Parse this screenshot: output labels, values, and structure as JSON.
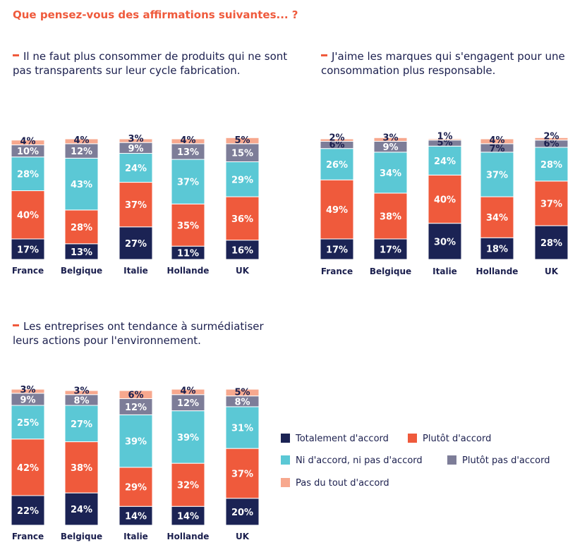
{
  "title": "Que pensez-vous des affirmations suivantes... ?",
  "colors": {
    "totalement": "#1b2354",
    "plutot": "#ef5a3c",
    "ni": "#5bc8d5",
    "plutot_pas": "#7d7d98",
    "pas_du_tout": "#f7a88e"
  },
  "legend": [
    {
      "key": "totalement",
      "label": "Totalement d'accord"
    },
    {
      "key": "plutot",
      "label": "Plutôt d'accord"
    },
    {
      "key": "ni",
      "label": "Ni d'accord, ni pas d'accord"
    },
    {
      "key": "plutot_pas",
      "label": "Plutôt pas d'accord"
    },
    {
      "key": "pas_du_tout",
      "label": "Pas du tout d'accord"
    }
  ],
  "chart_data": [
    {
      "type": "bar",
      "stacked": true,
      "title": "Il ne faut plus consommer de produits qui ne sont pas transparents sur leur cycle fabrication.",
      "categories": [
        "France",
        "Belgique",
        "Italie",
        "Hollande",
        "UK"
      ],
      "unit": "%",
      "series": [
        {
          "key": "totalement",
          "name": "Totalement d'accord",
          "values": [
            17,
            13,
            27,
            11,
            16
          ]
        },
        {
          "key": "plutot",
          "name": "Plutôt d'accord",
          "values": [
            40,
            28,
            37,
            35,
            36
          ]
        },
        {
          "key": "ni",
          "name": "Ni d'accord, ni pas d'accord",
          "values": [
            28,
            43,
            24,
            37,
            29
          ]
        },
        {
          "key": "plutot_pas",
          "name": "Plutôt pas d'accord",
          "values": [
            10,
            12,
            9,
            13,
            15
          ]
        },
        {
          "key": "pas_du_tout",
          "name": "Pas du tout d'accord",
          "values": [
            4,
            4,
            3,
            4,
            5
          ]
        }
      ]
    },
    {
      "type": "bar",
      "stacked": true,
      "title": "J'aime les marques qui s'engagent pour une consommation plus responsable.",
      "categories": [
        "France",
        "Belgique",
        "Italie",
        "Hollande",
        "UK"
      ],
      "unit": "%",
      "series": [
        {
          "key": "totalement",
          "name": "Totalement d'accord",
          "values": [
            17,
            17,
            30,
            18,
            28
          ]
        },
        {
          "key": "plutot",
          "name": "Plutôt d'accord",
          "values": [
            49,
            38,
            40,
            34,
            37
          ]
        },
        {
          "key": "ni",
          "name": "Ni d'accord, ni pas d'accord",
          "values": [
            26,
            34,
            24,
            37,
            28
          ]
        },
        {
          "key": "plutot_pas",
          "name": "Plutôt pas d'accord",
          "values": [
            6,
            9,
            5,
            7,
            6
          ]
        },
        {
          "key": "pas_du_tout",
          "name": "Pas du tout d'accord",
          "values": [
            2,
            3,
            1,
            4,
            2
          ]
        }
      ]
    },
    {
      "type": "bar",
      "stacked": true,
      "title": "Les entreprises ont tendance à surmédiatiser leurs actions pour l'environnement.",
      "categories": [
        "France",
        "Belgique",
        "Italie",
        "Hollande",
        "UK"
      ],
      "unit": "%",
      "series": [
        {
          "key": "totalement",
          "name": "Totalement d'accord",
          "values": [
            22,
            24,
            14,
            14,
            20
          ]
        },
        {
          "key": "plutot",
          "name": "Plutôt d'accord",
          "values": [
            42,
            38,
            29,
            32,
            37
          ]
        },
        {
          "key": "ni",
          "name": "Ni d'accord, ni pas d'accord",
          "values": [
            25,
            27,
            39,
            39,
            31
          ]
        },
        {
          "key": "plutot_pas",
          "name": "Plutôt pas d'accord",
          "values": [
            9,
            8,
            12,
            12,
            8
          ]
        },
        {
          "key": "pas_du_tout",
          "name": "Pas du tout d'accord",
          "values": [
            3,
            3,
            6,
            4,
            5
          ]
        }
      ]
    }
  ]
}
